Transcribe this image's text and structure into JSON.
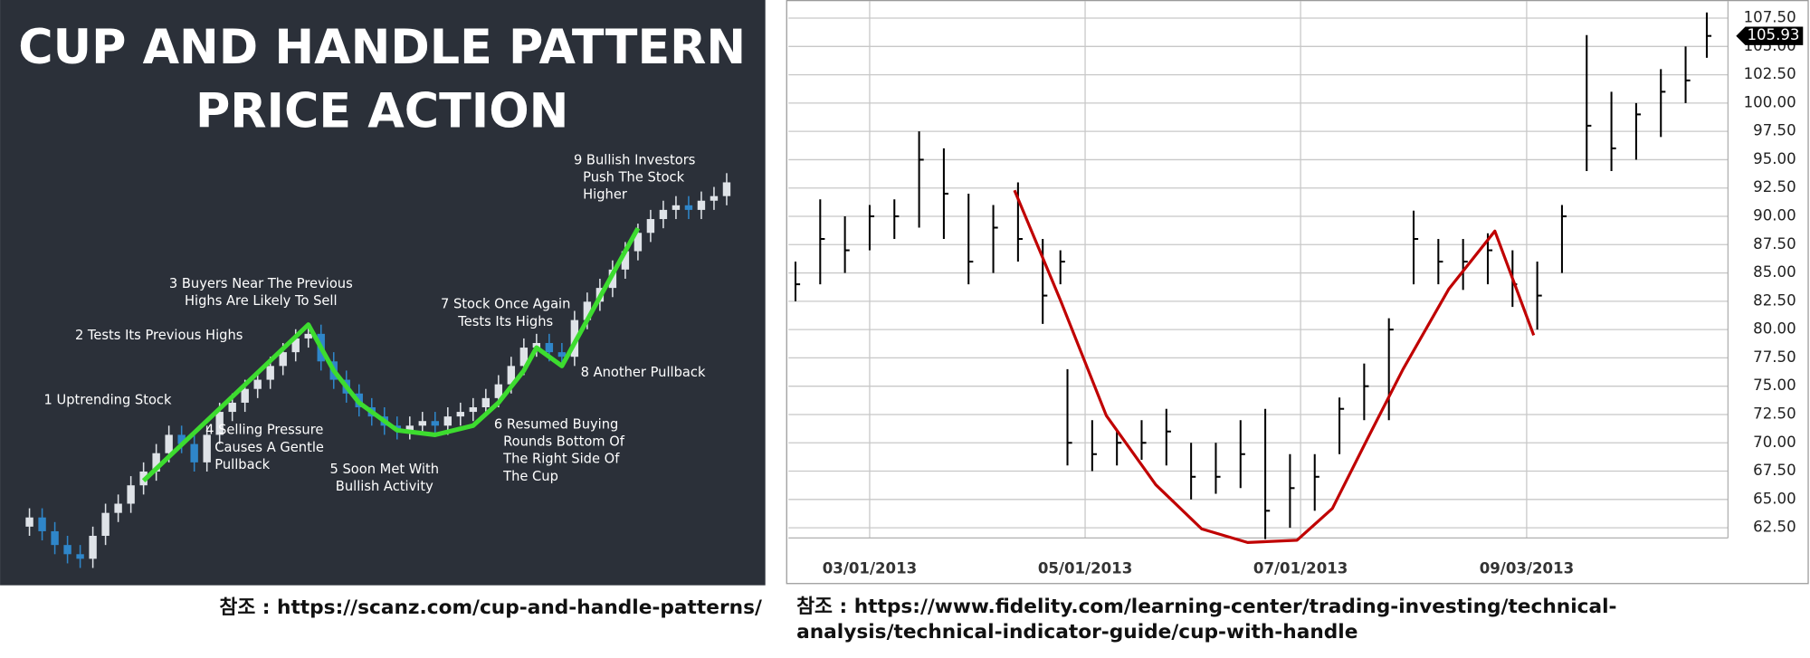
{
  "chart_data": [
    {
      "type": "candlestick",
      "title": [
        "CUP AND HANDLE PATTERN",
        "PRICE ACTION"
      ],
      "open": [
        10,
        12,
        9,
        6,
        4,
        3,
        8,
        13,
        15,
        19,
        22,
        26,
        30,
        28,
        24,
        30,
        35,
        37,
        40,
        42,
        45,
        48,
        51,
        52,
        46,
        42,
        39,
        36,
        34,
        32,
        31,
        32,
        33,
        32,
        34,
        35,
        36,
        38,
        41,
        45,
        49,
        50,
        48,
        47,
        55,
        59,
        62,
        66,
        70,
        74,
        77,
        79,
        80,
        79,
        81,
        82
      ],
      "close": [
        12,
        9,
        6,
        4,
        3,
        8,
        13,
        15,
        19,
        22,
        26,
        30,
        28,
        24,
        30,
        35,
        37,
        40,
        42,
        45,
        48,
        51,
        52,
        46,
        42,
        39,
        36,
        34,
        32,
        31,
        32,
        33,
        32,
        34,
        35,
        36,
        38,
        41,
        45,
        49,
        50,
        48,
        47,
        55,
        59,
        62,
        66,
        70,
        74,
        77,
        79,
        80,
        79,
        81,
        82,
        85
      ],
      "high": [
        14,
        14,
        11,
        8,
        6,
        10,
        15,
        17,
        21,
        24,
        28,
        32,
        32,
        30,
        32,
        37,
        39,
        42,
        44,
        47,
        50,
        53,
        54,
        54,
        48,
        44,
        41,
        38,
        36,
        34,
        34,
        35,
        35,
        36,
        37,
        38,
        40,
        43,
        47,
        51,
        52,
        52,
        50,
        57,
        61,
        64,
        68,
        72,
        76,
        79,
        81,
        82,
        82,
        83,
        84,
        87
      ],
      "low": [
        8,
        7,
        4,
        2,
        1,
        1,
        6,
        11,
        13,
        17,
        20,
        24,
        26,
        22,
        22,
        28,
        33,
        35,
        38,
        40,
        43,
        46,
        49,
        44,
        40,
        37,
        34,
        32,
        30,
        29,
        29,
        30,
        30,
        30,
        32,
        33,
        34,
        36,
        39,
        43,
        47,
        46,
        45,
        45,
        53,
        57,
        60,
        64,
        68,
        72,
        75,
        77,
        77,
        77,
        79,
        80
      ],
      "up_color": "#dfe3e8",
      "down_color": "#2f86c9",
      "cup_line": {
        "color": "#3ddc2f",
        "x": [
          9,
          22,
          24,
          26,
          29,
          32,
          35,
          37,
          39,
          40,
          42,
          46,
          48
        ],
        "values": [
          20,
          54,
          44,
          37,
          31,
          30,
          32,
          37,
          44,
          49,
          45,
          65,
          75
        ]
      },
      "annotations": [
        [
          "1 Uptrending Stock"
        ],
        [
          "2 Tests Its Previous Highs"
        ],
        [
          "3 Buyers Near The Previous",
          "Highs Are Likely To Sell"
        ],
        [
          "4 Selling Pressure",
          "Causes A Gentle",
          "Pullback"
        ],
        [
          "5 Soon Met With",
          "Bullish Activity"
        ],
        [
          "6 Resumed Buying",
          "Rounds Bottom Of",
          "The Right Side Of",
          "The Cup"
        ],
        [
          "7 Stock Once Again",
          "Tests Its Highs"
        ],
        [
          "8 Another Pullback"
        ],
        [
          "9 Bullish Investors",
          "Push The Stock",
          "Higher"
        ]
      ]
    },
    {
      "type": "ohlc",
      "x": [
        "2013-02-08",
        "2013-02-15",
        "2013-02-22",
        "2013-03-01",
        "2013-03-08",
        "2013-03-15",
        "2013-03-22",
        "2013-03-29",
        "2013-04-05",
        "2013-04-12",
        "2013-04-19",
        "2013-04-24",
        "2013-04-26",
        "2013-05-03",
        "2013-05-10",
        "2013-05-17",
        "2013-05-24",
        "2013-05-31",
        "2013-06-07",
        "2013-06-14",
        "2013-06-21",
        "2013-06-28",
        "2013-07-05",
        "2013-07-12",
        "2013-07-19",
        "2013-07-26",
        "2013-08-02",
        "2013-08-09",
        "2013-08-16",
        "2013-08-23",
        "2013-08-30",
        "2013-09-06",
        "2013-09-13",
        "2013-09-20",
        "2013-09-27",
        "2013-10-04",
        "2013-10-11",
        "2013-10-18",
        "2013-10-24"
      ],
      "high": [
        86,
        91.5,
        90,
        91,
        91.5,
        97.5,
        96,
        92,
        91,
        93,
        88,
        87,
        76.5,
        72,
        71,
        72,
        73,
        70,
        70,
        72,
        73,
        69,
        69,
        74,
        77,
        81,
        90.5,
        88,
        88,
        88.5,
        87,
        86,
        91,
        106,
        101,
        100,
        103,
        105,
        108
      ],
      "low": [
        82.5,
        84,
        85,
        87,
        88,
        89,
        88,
        84,
        85,
        86,
        80.5,
        84,
        68,
        67.5,
        68,
        68.5,
        68,
        65,
        65.5,
        66,
        61.5,
        62.5,
        64,
        69,
        72,
        72,
        84,
        84,
        83.5,
        84,
        82,
        80,
        85,
        94,
        94,
        95,
        97,
        100,
        104
      ],
      "close": [
        84,
        88,
        87,
        90,
        90,
        95,
        92,
        86,
        89,
        88,
        83,
        86,
        70,
        69,
        70,
        70,
        71,
        67,
        67,
        69,
        64,
        66,
        67,
        73,
        75,
        80,
        88,
        86,
        86,
        87,
        84,
        83,
        90,
        98,
        96,
        99,
        101,
        102,
        105.93
      ],
      "color": "#000000",
      "price_tag": 105.93,
      "cup_line": {
        "color": "#c00000",
        "x": [
          "2013-04-11",
          "2013-04-24",
          "2013-05-07",
          "2013-05-21",
          "2013-06-03",
          "2013-06-16",
          "2013-06-30",
          "2013-07-10",
          "2013-07-20",
          "2013-07-30",
          "2013-08-12",
          "2013-08-25",
          "2013-09-05"
        ],
        "values": [
          92.3,
          82.6,
          72.4,
          66.3,
          62.4,
          61.2,
          61.4,
          64.2,
          70.4,
          76.5,
          83.6,
          88.7,
          79.5
        ]
      },
      "xlim": [
        "2013-02-06",
        "2013-10-30"
      ],
      "xticks": [
        {
          "value": "2013-03-01",
          "label": "03/01/2013"
        },
        {
          "value": "2013-05-01",
          "label": "05/01/2013"
        },
        {
          "value": "2013-07-01",
          "label": "07/01/2013"
        },
        {
          "value": "2013-09-03",
          "label": "09/03/2013"
        }
      ],
      "ylim": [
        61.6,
        109
      ],
      "yticks": [
        {
          "value": 62.5,
          "label": "62.50"
        },
        {
          "value": 65,
          "label": "65.00"
        },
        {
          "value": 67.5,
          "label": "67.50"
        },
        {
          "value": 70,
          "label": "70.00"
        },
        {
          "value": 72.5,
          "label": "72.50"
        },
        {
          "value": 75,
          "label": "75.00"
        },
        {
          "value": 77.5,
          "label": "77.50"
        },
        {
          "value": 80,
          "label": "80.00"
        },
        {
          "value": 82.5,
          "label": "82.50"
        },
        {
          "value": 85,
          "label": "85.00"
        },
        {
          "value": 87.5,
          "label": "87.50"
        },
        {
          "value": 90,
          "label": "90.00"
        },
        {
          "value": 92.5,
          "label": "92.50"
        },
        {
          "value": 95,
          "label": "95.00"
        },
        {
          "value": 97.5,
          "label": "97.50"
        },
        {
          "value": 100,
          "label": "100.00"
        },
        {
          "value": 102.5,
          "label": "102.50"
        },
        {
          "value": 105,
          "label": "105.00"
        },
        {
          "value": 107.5,
          "label": "107.50"
        }
      ],
      "grid": true
    }
  ],
  "captions": [
    [
      "참조 : https://scanz.com/cup-and-handle-patterns/"
    ],
    [
      "참조 : https://www.fidelity.com/learning-center/trading-investing/technical-",
      "analysis/technical-indicator-guide/cup-with-handle"
    ]
  ]
}
